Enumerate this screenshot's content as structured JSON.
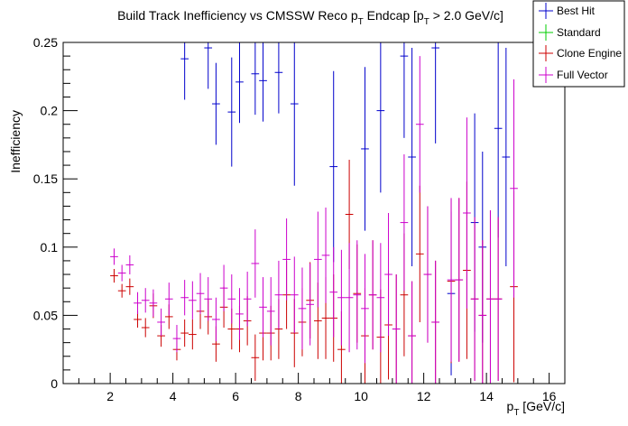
{
  "chart_data": {
    "type": "scatter",
    "title": "Build Track Inefficiency vs CMSSW Reco p",
    "title_sub": "T",
    "title_mid": " Endcap [p",
    "title_sub2": "T",
    "title_end": " > 2.0 GeV/c]",
    "xlabel": "p",
    "xlabel_sub": "T",
    "xlabel_unit": " [GeV/c]",
    "ylabel": "Inefficiency",
    "xlim": [
      0.5,
      16.5
    ],
    "ylim": [
      0,
      0.25
    ],
    "x_ticks": [
      2,
      4,
      6,
      8,
      10,
      12,
      14,
      16
    ],
    "x_tick_labels": [
      "2",
      "4",
      "6",
      "8",
      "10",
      "12",
      "14",
      "16"
    ],
    "y_ticks": [
      0,
      0.05,
      0.1,
      0.15,
      0.2,
      0.25
    ],
    "y_tick_labels": [
      "0",
      "0.05",
      "0.1",
      "0.15",
      "0.2",
      "0.25"
    ],
    "x_half_width": 0.125,
    "grid": false,
    "legend_position": "top-right",
    "series": [
      {
        "name": "Best Hit",
        "color": "#0000cc",
        "points": [
          [
            4.375,
            0.238,
            0.03
          ],
          [
            5.125,
            0.246,
            0.03
          ],
          [
            5.375,
            0.205,
            0.03
          ],
          [
            5.875,
            0.199,
            0.04
          ],
          [
            6.125,
            0.221,
            0.03
          ],
          [
            6.625,
            0.227,
            0.03
          ],
          [
            6.875,
            0.222,
            0.03
          ],
          [
            7.375,
            0.228,
            0.03
          ],
          [
            7.875,
            0.205,
            0.06
          ],
          [
            9.125,
            0.159,
            0.07
          ],
          [
            10.125,
            0.172,
            0.06
          ],
          [
            10.625,
            0.2,
            0.06
          ],
          [
            11.375,
            0.24,
            0.06
          ],
          [
            11.625,
            0.166,
            0.08
          ],
          [
            12.375,
            0.246,
            0.07
          ],
          [
            12.875,
            0.066,
            0.06
          ],
          [
            13.625,
            0.118,
            0.08
          ],
          [
            13.875,
            0.1,
            0.07
          ],
          [
            14.375,
            0.187,
            0.08
          ],
          [
            14.625,
            0.166,
            0.08
          ]
        ]
      },
      {
        "name": "Standard",
        "color": "#00cc00",
        "points": []
      },
      {
        "name": "Clone Engine",
        "color": "#cc0000",
        "points": [
          [
            2.125,
            0.079,
            0.005
          ],
          [
            2.375,
            0.068,
            0.005
          ],
          [
            2.625,
            0.071,
            0.006
          ],
          [
            2.875,
            0.047,
            0.006
          ],
          [
            3.125,
            0.041,
            0.007
          ],
          [
            3.375,
            0.057,
            0.009
          ],
          [
            3.625,
            0.035,
            0.008
          ],
          [
            3.875,
            0.049,
            0.009
          ],
          [
            4.125,
            0.025,
            0.008
          ],
          [
            4.375,
            0.037,
            0.01
          ],
          [
            4.625,
            0.036,
            0.011
          ],
          [
            4.875,
            0.053,
            0.013
          ],
          [
            5.125,
            0.049,
            0.013
          ],
          [
            5.375,
            0.029,
            0.013
          ],
          [
            5.625,
            0.056,
            0.015
          ],
          [
            5.875,
            0.04,
            0.015
          ],
          [
            6.125,
            0.04,
            0.017
          ],
          [
            6.375,
            0.046,
            0.018
          ],
          [
            6.625,
            0.019,
            0.017
          ],
          [
            6.875,
            0.037,
            0.02
          ],
          [
            7.125,
            0.037,
            0.02
          ],
          [
            7.375,
            0.04,
            0.022
          ],
          [
            7.625,
            0.065,
            0.025
          ],
          [
            7.875,
            0.037,
            0.025
          ],
          [
            8.125,
            0.045,
            0.025
          ],
          [
            8.375,
            0.061,
            0.028
          ],
          [
            8.625,
            0.046,
            0.028
          ],
          [
            8.875,
            0.048,
            0.03
          ],
          [
            9.125,
            0.048,
            0.032
          ],
          [
            9.375,
            0.025,
            0.028
          ],
          [
            9.625,
            0.124,
            0.04
          ],
          [
            9.875,
            0.066,
            0.036
          ],
          [
            10.125,
            0.035,
            0.035
          ],
          [
            10.375,
            0.065,
            0.04
          ],
          [
            10.625,
            0.034,
            0.035
          ],
          [
            10.875,
            0.043,
            0.04
          ],
          [
            11.125,
            0.04,
            0.04
          ],
          [
            11.375,
            0.065,
            0.045
          ],
          [
            11.625,
            0.035,
            0.04
          ],
          [
            11.875,
            0.095,
            0.05
          ],
          [
            12.125,
            0.08,
            0.05
          ],
          [
            12.375,
            0.045,
            0.045
          ],
          [
            12.875,
            0.075,
            0.06
          ],
          [
            13.125,
            0.076,
            0.06
          ],
          [
            13.375,
            0.083,
            0.065
          ],
          [
            13.625,
            0.062,
            0.06
          ],
          [
            13.875,
            0.05,
            0.055
          ],
          [
            14.125,
            0.062,
            0.065
          ],
          [
            14.375,
            0.062,
            0.06
          ],
          [
            14.875,
            0.071,
            0.07
          ]
        ]
      },
      {
        "name": "Full Vector",
        "color": "#cc00cc",
        "points": [
          [
            2.125,
            0.093,
            0.006
          ],
          [
            2.375,
            0.081,
            0.006
          ],
          [
            2.625,
            0.087,
            0.007
          ],
          [
            2.875,
            0.059,
            0.008
          ],
          [
            3.125,
            0.061,
            0.009
          ],
          [
            3.375,
            0.059,
            0.01
          ],
          [
            3.625,
            0.045,
            0.01
          ],
          [
            3.875,
            0.062,
            0.012
          ],
          [
            4.125,
            0.033,
            0.01
          ],
          [
            4.375,
            0.063,
            0.013
          ],
          [
            4.625,
            0.061,
            0.014
          ],
          [
            4.875,
            0.066,
            0.015
          ],
          [
            5.125,
            0.062,
            0.016
          ],
          [
            5.375,
            0.047,
            0.016
          ],
          [
            5.625,
            0.07,
            0.017
          ],
          [
            5.875,
            0.062,
            0.018
          ],
          [
            6.125,
            0.051,
            0.019
          ],
          [
            6.375,
            0.062,
            0.02
          ],
          [
            6.625,
            0.088,
            0.025
          ],
          [
            6.875,
            0.056,
            0.022
          ],
          [
            7.125,
            0.053,
            0.025
          ],
          [
            7.375,
            0.065,
            0.025
          ],
          [
            7.625,
            0.091,
            0.03
          ],
          [
            7.875,
            0.065,
            0.028
          ],
          [
            8.125,
            0.055,
            0.03
          ],
          [
            8.375,
            0.058,
            0.03
          ],
          [
            8.625,
            0.091,
            0.035
          ],
          [
            8.875,
            0.094,
            0.035
          ],
          [
            9.125,
            0.067,
            0.033
          ],
          [
            9.375,
            0.063,
            0.035
          ],
          [
            9.625,
            0.063,
            0.04
          ],
          [
            9.875,
            0.065,
            0.04
          ],
          [
            10.125,
            0.055,
            0.04
          ],
          [
            10.375,
            0.065,
            0.04
          ],
          [
            10.625,
            0.063,
            0.04
          ],
          [
            10.875,
            0.08,
            0.045
          ],
          [
            11.125,
            0.04,
            0.04
          ],
          [
            11.375,
            0.118,
            0.05
          ],
          [
            11.625,
            0.035,
            0.04
          ],
          [
            11.875,
            0.19,
            0.05
          ],
          [
            12.125,
            0.08,
            0.05
          ],
          [
            12.375,
            0.045,
            0.045
          ],
          [
            12.875,
            0.076,
            0.06
          ],
          [
            13.125,
            0.076,
            0.06
          ],
          [
            13.375,
            0.125,
            0.07
          ],
          [
            13.625,
            0.062,
            0.06
          ],
          [
            13.875,
            0.05,
            0.055
          ],
          [
            14.125,
            0.062,
            0.065
          ],
          [
            14.375,
            0.062,
            0.06
          ],
          [
            14.875,
            0.143,
            0.08
          ]
        ]
      }
    ]
  }
}
